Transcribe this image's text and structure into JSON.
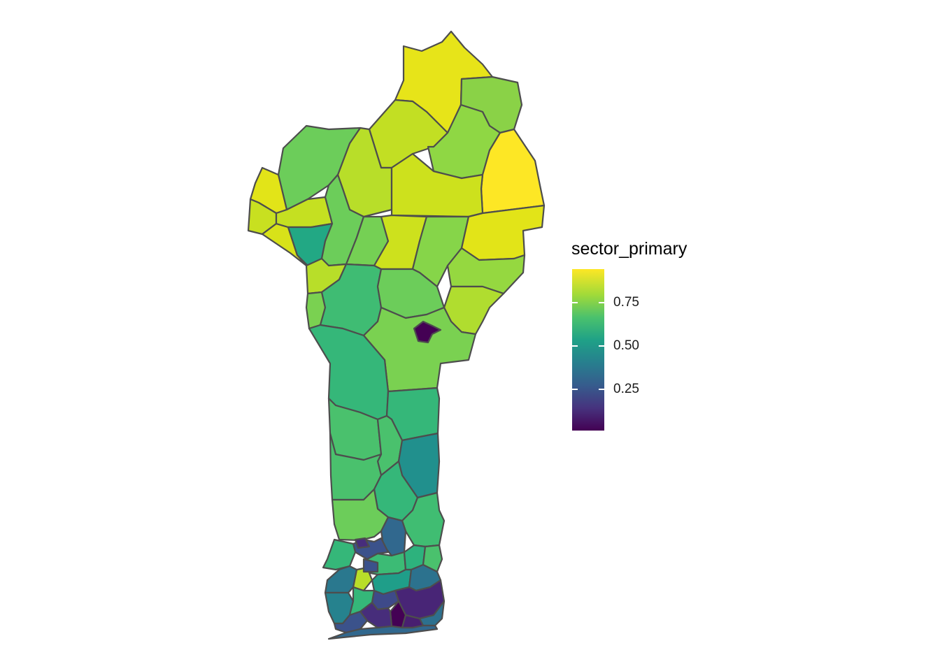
{
  "legend": {
    "title": "sector_primary",
    "ticks": [
      {
        "label": "0.75",
        "value": 0.75
      },
      {
        "label": "0.50",
        "value": 0.5
      },
      {
        "label": "0.25",
        "value": 0.25
      }
    ],
    "min": 0.0,
    "max": 0.95
  },
  "colors": {
    "border": "#4d4d4d",
    "palette": "viridis"
  }
}
